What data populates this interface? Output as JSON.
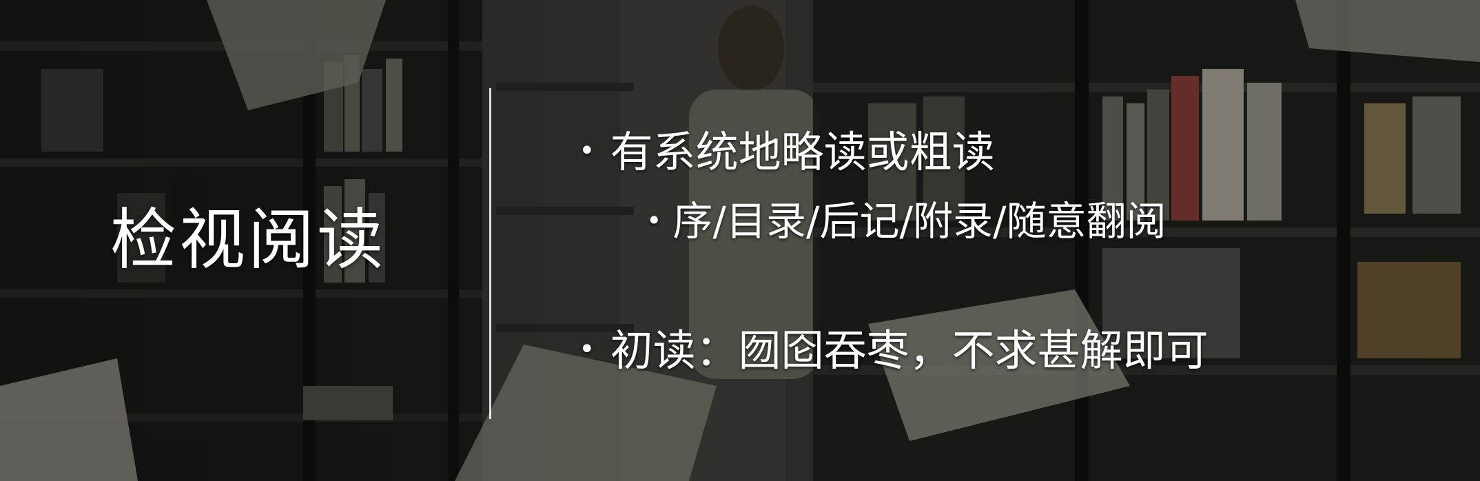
{
  "slide": {
    "title": "检视阅读",
    "bullets": [
      {
        "text": "有系统地略读或粗读"
      },
      {
        "text": "序/目录/后记/附录/随意翻阅"
      },
      {
        "text": "初读：囫囵吞枣，不求甚解即可"
      }
    ],
    "bullet_symbol": "•"
  },
  "background": {
    "description_icon": "library-photo",
    "overlay_color": "#000000"
  }
}
